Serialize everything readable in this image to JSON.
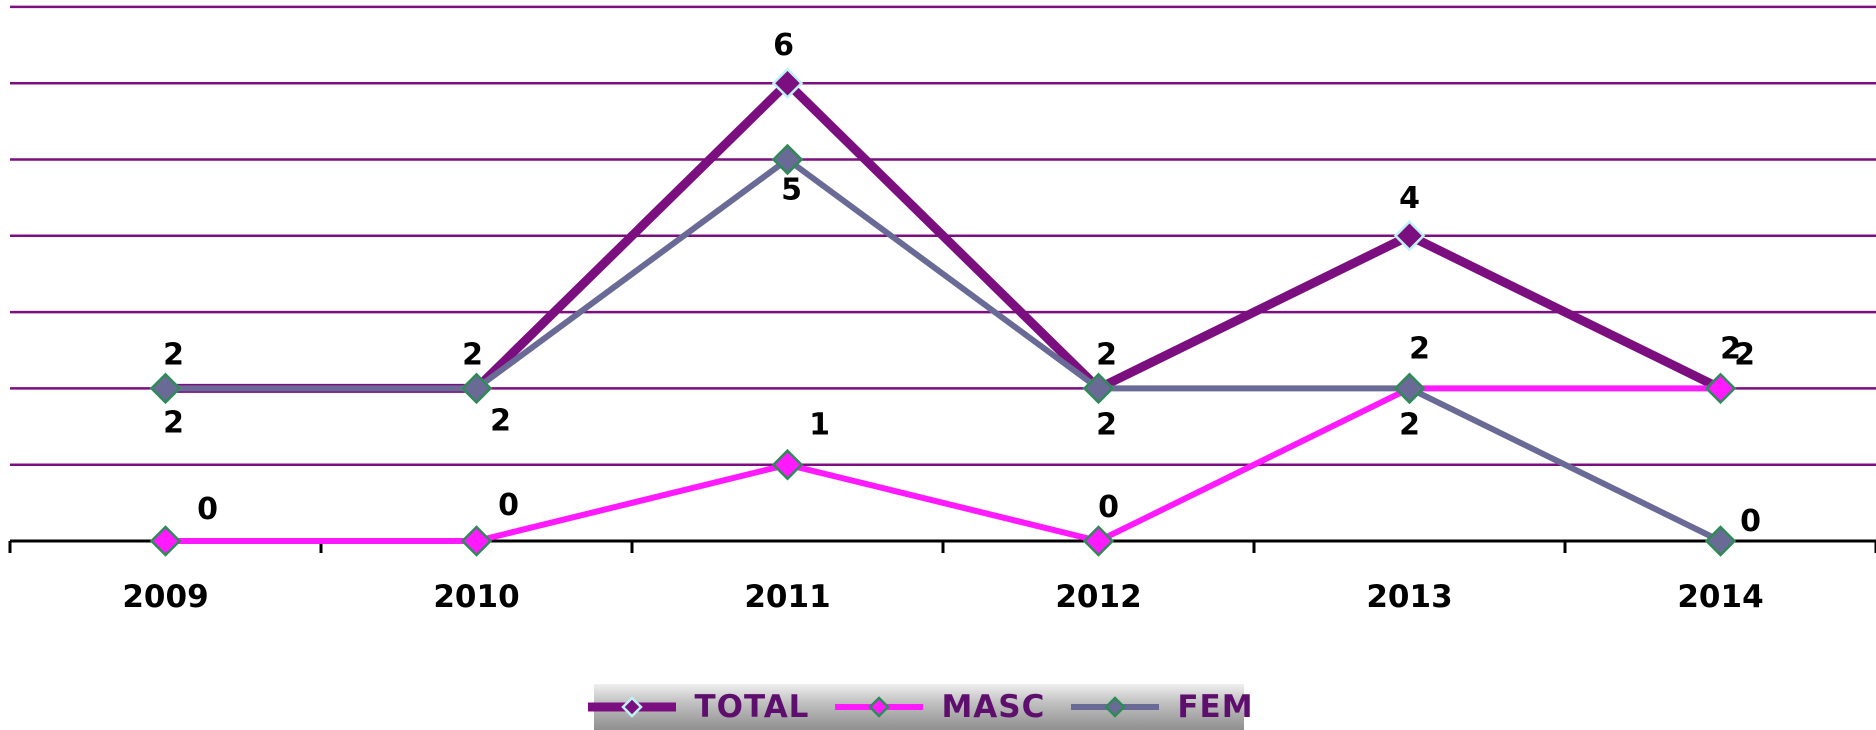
{
  "chart_data": {
    "type": "line",
    "categories": [
      "2009",
      "2010",
      "2011",
      "2012",
      "2013",
      "2014"
    ],
    "ylim": [
      0,
      7
    ],
    "grid": true,
    "legend_position": "bottom",
    "series": [
      {
        "name": "TOTAL",
        "values": [
          2,
          2,
          6,
          2,
          4,
          2
        ],
        "color": "#7b0f80"
      },
      {
        "name": "MASC",
        "values": [
          0,
          0,
          1,
          0,
          2,
          2
        ],
        "color": "#ff1aff"
      },
      {
        "name": "FEM",
        "values": [
          2,
          2,
          5,
          2,
          2,
          0
        ],
        "color": "#6a6a96"
      }
    ],
    "colors": {
      "grid": "#7b0f80",
      "axis": "#000000",
      "marker_border_total": "#bff2f5",
      "marker_border_other": "#2e8b57"
    }
  }
}
